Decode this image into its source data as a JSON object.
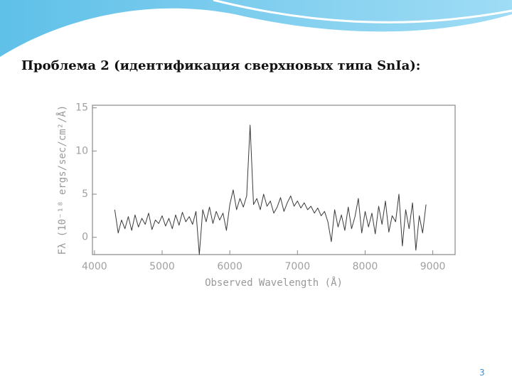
{
  "slide": {
    "title": "Проблема 2 (идентификация сверхновых типа SnIa):",
    "page_number": "3"
  },
  "chart_data": {
    "type": "line",
    "xlabel": "Observed Wavelength (Å)",
    "ylabel": "Fλ (10⁻¹⁸ ergs/sec/cm²/Å)",
    "xlim": [
      3970,
      9330
    ],
    "ylim": [
      -2,
      15.3
    ],
    "xticks": [
      4000,
      5000,
      6000,
      7000,
      8000,
      9000
    ],
    "yticks": [
      0,
      5,
      10,
      15
    ],
    "color": "#3a3a3a",
    "x": [
      4300,
      4350,
      4400,
      4450,
      4500,
      4550,
      4600,
      4650,
      4700,
      4750,
      4800,
      4850,
      4900,
      4950,
      5000,
      5050,
      5100,
      5150,
      5200,
      5250,
      5300,
      5350,
      5400,
      5450,
      5500,
      5550,
      5600,
      5650,
      5700,
      5750,
      5800,
      5850,
      5900,
      5950,
      6000,
      6050,
      6100,
      6150,
      6200,
      6250,
      6300,
      6350,
      6400,
      6450,
      6500,
      6550,
      6600,
      6650,
      6700,
      6750,
      6800,
      6850,
      6900,
      6950,
      7000,
      7050,
      7100,
      7150,
      7200,
      7250,
      7300,
      7350,
      7400,
      7450,
      7500,
      7550,
      7600,
      7650,
      7700,
      7750,
      7800,
      7850,
      7900,
      7950,
      8000,
      8050,
      8100,
      8150,
      8200,
      8250,
      8300,
      8350,
      8400,
      8450,
      8500,
      8550,
      8600,
      8650,
      8700,
      8750,
      8800,
      8850,
      8900
    ],
    "values": [
      3.2,
      0.5,
      2.0,
      1.0,
      2.4,
      0.8,
      2.6,
      1.2,
      2.2,
      1.5,
      2.8,
      0.9,
      2.0,
      1.6,
      2.5,
      1.3,
      2.2,
      1.0,
      2.6,
      1.4,
      2.9,
      1.8,
      2.4,
      1.5,
      3.0,
      -2.0,
      3.2,
      1.8,
      3.5,
      1.6,
      3.0,
      2.0,
      2.8,
      0.8,
      3.8,
      5.5,
      3.2,
      4.5,
      3.5,
      4.8,
      13.0,
      3.8,
      4.5,
      3.2,
      5.0,
      3.6,
      4.2,
      2.8,
      3.5,
      4.6,
      3.0,
      4.0,
      4.8,
      3.6,
      4.2,
      3.4,
      4.0,
      3.2,
      3.6,
      2.8,
      3.4,
      2.5,
      3.0,
      1.8,
      -0.5,
      3.2,
      1.2,
      2.6,
      0.8,
      3.5,
      1.0,
      2.4,
      4.5,
      0.5,
      3.0,
      1.2,
      2.8,
      0.4,
      3.6,
      1.5,
      4.2,
      0.6,
      2.5,
      1.8,
      5.0,
      -1.0,
      3.2,
      1.0,
      4.0,
      -1.5,
      2.5,
      0.5,
      3.8
    ]
  }
}
